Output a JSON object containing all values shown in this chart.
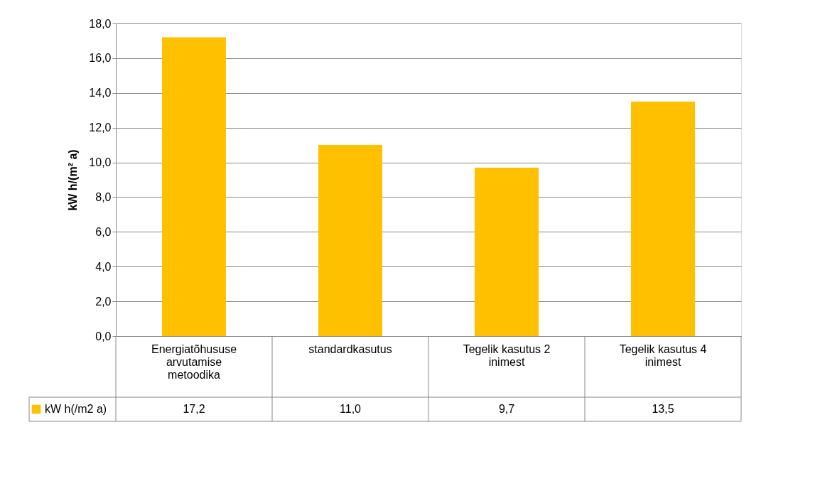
{
  "chart_data": {
    "type": "bar",
    "ylabel": "kW h/(m² a)",
    "categories": [
      "Energiatõhususe arvutamise metoodika",
      "standardkasutus",
      "Tegelik kasutus 2 inimest",
      "Tegelik kasutus 4 inimest"
    ],
    "series": [
      {
        "name": "kW h(/m2 a)",
        "color": "#ffc000",
        "values": [
          17.2,
          11.0,
          9.7,
          13.5
        ],
        "value_labels": [
          "17,2",
          "11,0",
          "9,7",
          "13,5"
        ]
      }
    ],
    "ylim": [
      0,
      18
    ],
    "yticks": [
      {
        "value": 0,
        "label": "0,0"
      },
      {
        "value": 2,
        "label": "2,0"
      },
      {
        "value": 4,
        "label": "4,0"
      },
      {
        "value": 6,
        "label": "6,0"
      },
      {
        "value": 8,
        "label": "8,0"
      },
      {
        "value": 10,
        "label": "10,0"
      },
      {
        "value": 12,
        "label": "12,0"
      },
      {
        "value": 14,
        "label": "14,0"
      },
      {
        "value": 16,
        "label": "16,0"
      },
      {
        "value": 18,
        "label": "18,0"
      }
    ],
    "grid": "y",
    "legend": "bottom left"
  }
}
